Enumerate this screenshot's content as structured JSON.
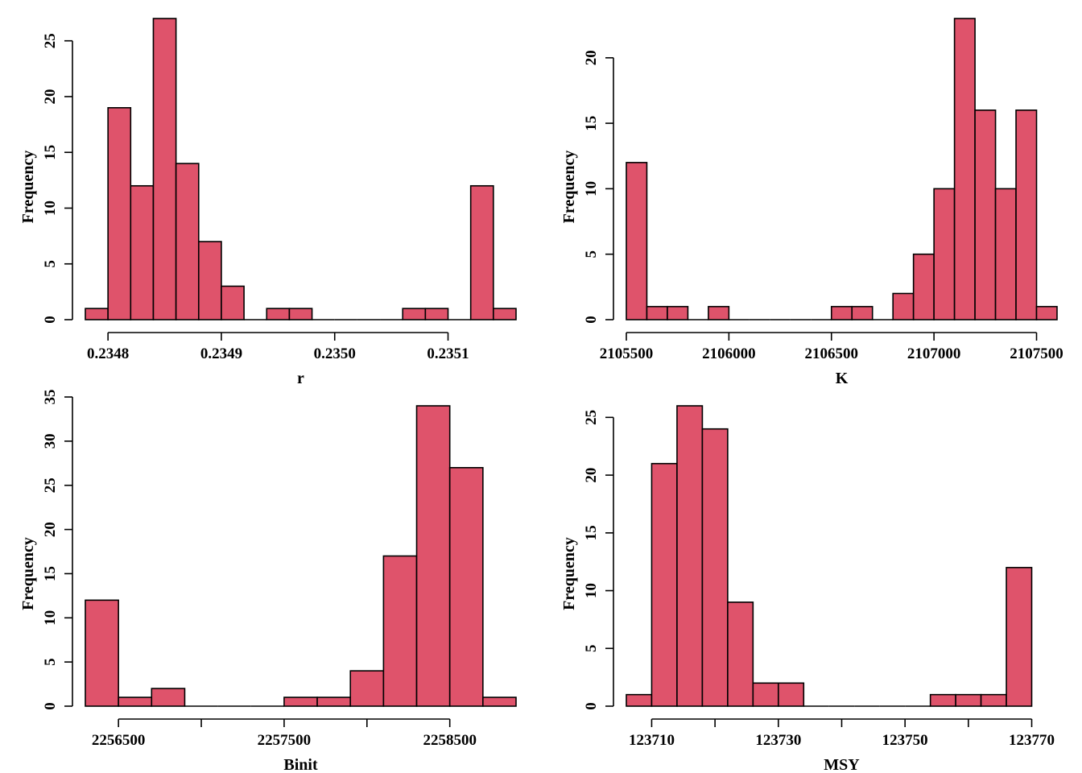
{
  "chart_data": [
    {
      "type": "histogram",
      "xlabel": "r",
      "ylabel": "Frequency",
      "bar_color": "#DF536B",
      "bin_edges": [
        0.23478,
        0.2348,
        0.23482,
        0.23484,
        0.23486,
        0.23488,
        0.2349,
        0.23492,
        0.23494,
        0.23496,
        0.23498,
        0.235,
        0.23502,
        0.23504,
        0.23506,
        0.23508,
        0.2351,
        0.23512,
        0.23514,
        0.23516
      ],
      "counts": [
        1,
        19,
        12,
        27,
        14,
        7,
        3,
        0,
        1,
        1,
        0,
        0,
        0,
        0,
        1,
        1,
        0,
        12,
        1
      ],
      "x_ticks": [
        0.2348,
        0.2349,
        0.235,
        0.2351
      ],
      "x_tick_labels": [
        "0.2348",
        "0.2349",
        "0.2350",
        "0.2351"
      ],
      "y_ticks": [
        0,
        5,
        10,
        15,
        20,
        25
      ],
      "y_tick_labels": [
        "0",
        "5",
        "10",
        "15",
        "20",
        "25"
      ]
    },
    {
      "type": "histogram",
      "xlabel": "K",
      "ylabel": "Frequency",
      "bar_color": "#DF536B",
      "bin_edges": [
        2105500,
        2105600,
        2105700,
        2105800,
        2105900,
        2106000,
        2106100,
        2106200,
        2106300,
        2106400,
        2106500,
        2106600,
        2106700,
        2106800,
        2106900,
        2107000,
        2107100,
        2107200,
        2107300,
        2107400,
        2107500,
        2107600
      ],
      "counts": [
        12,
        1,
        1,
        0,
        1,
        0,
        0,
        0,
        0,
        0,
        1,
        1,
        0,
        2,
        5,
        10,
        23,
        16,
        10,
        16,
        1
      ],
      "x_ticks": [
        2105500,
        2106000,
        2106500,
        2107000,
        2107500
      ],
      "x_tick_labels": [
        "2105500",
        "2106000",
        "2106500",
        "2107000",
        "2107500"
      ],
      "y_ticks": [
        0,
        5,
        10,
        15,
        20
      ],
      "y_tick_labels": [
        "0",
        "5",
        "10",
        "15",
        "20"
      ]
    },
    {
      "type": "histogram",
      "xlabel": "Binit",
      "ylabel": "Frequency",
      "bar_color": "#DF536B",
      "bin_edges": [
        2256200,
        2256400,
        2256600,
        2256800,
        2257000,
        2257200,
        2257400,
        2257600,
        2257800,
        2258000,
        2258200,
        2258400,
        2258600,
        2258800
      ],
      "counts": [
        12,
        1,
        2,
        0,
        0,
        0,
        1,
        1,
        4,
        17,
        34,
        27,
        1
      ],
      "x_ticks": [
        2256500,
        2257000,
        2257500,
        2258000,
        2258500
      ],
      "x_tick_labels": [
        "2256500",
        "",
        "2257500",
        "",
        "2258500"
      ],
      "y_ticks": [
        0,
        5,
        10,
        15,
        20,
        25,
        30,
        35
      ],
      "y_tick_labels": [
        "0",
        "5",
        "10",
        "15",
        "20",
        "25",
        "30",
        "35"
      ]
    },
    {
      "type": "histogram",
      "xlabel": "MSY",
      "ylabel": "Frequency",
      "bar_color": "#DF536B",
      "bin_edges": [
        123704,
        123706,
        123708,
        123710,
        123712,
        123714,
        123716,
        123718,
        123720,
        123722,
        123724,
        123726,
        123728,
        123730,
        123732,
        123734,
        123736,
        123738,
        123740,
        123742,
        123744,
        123746,
        123748,
        123750,
        123752,
        123754,
        123756,
        123758,
        123760,
        123762,
        123764,
        123766,
        123768,
        123770,
        123772,
        123774,
        123776
      ],
      "bin_edges_note_free": true,
      "x_ticks": [
        123710,
        123720,
        123730,
        123740,
        123750,
        123760,
        123770
      ],
      "x_tick_labels": [
        "123710",
        "",
        "123730",
        "",
        "123750",
        "",
        "123770"
      ],
      "y_ticks": [
        0,
        5,
        10,
        15,
        20,
        25
      ],
      "y_tick_labels": [
        "0",
        "5",
        "10",
        "15",
        "20",
        "25"
      ]
    }
  ]
}
